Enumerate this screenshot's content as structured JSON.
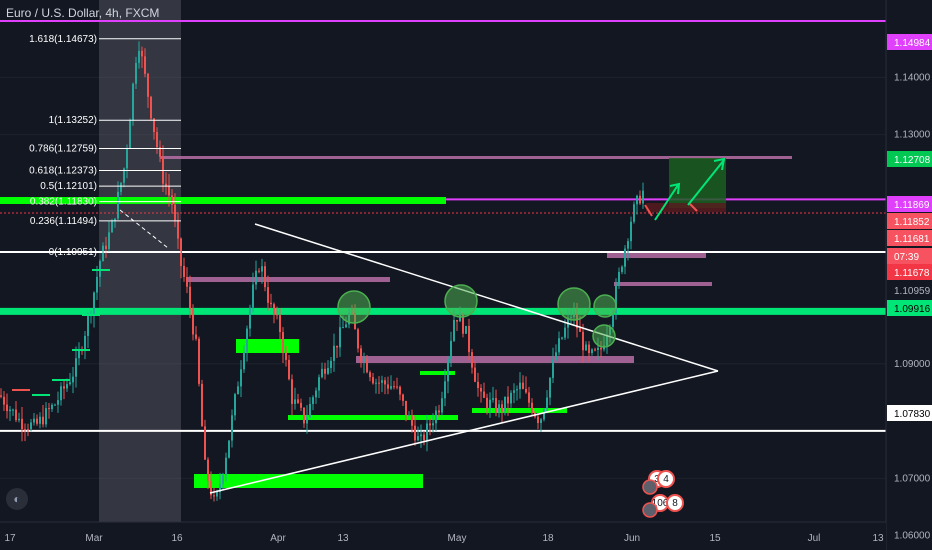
{
  "header": {
    "title": "Euro / U.S. Dollar, 4h, FXCM"
  },
  "chart_data": {
    "type": "candlestick",
    "symbol": "Euro / U.S. Dollar",
    "timeframe": "4h",
    "source": "FXCM",
    "price_axis": {
      "range": [
        1.0575,
        1.1535
      ],
      "ticks": [
        1.14,
        1.13,
        1.09,
        1.07,
        1.06
      ]
    },
    "time_axis": {
      "ticks": [
        "17",
        "Mar",
        "16",
        "Apr",
        "13",
        "May",
        "18",
        "Jun",
        "15",
        "Jul",
        "13"
      ]
    },
    "price_tags": [
      {
        "label": "1.14984",
        "bg": "#e040fb",
        "fg": "#ffffff"
      },
      {
        "label": "1.12708",
        "bg": "#00c853",
        "fg": "#ffffff"
      },
      {
        "label": "1.11869",
        "bg": "#e040fb",
        "fg": "#ffffff"
      },
      {
        "label": "1.11852",
        "bg": "#f7525f",
        "fg": "#ffffff"
      },
      {
        "label": "1.11681",
        "bg": "#f7525f",
        "fg": "#ffffff"
      },
      {
        "label": "07:39",
        "bg": "#f7525f",
        "fg": "#ffffff"
      },
      {
        "label": "1.11678",
        "bg": "#f23645",
        "fg": "#ffffff"
      },
      {
        "label": "1.10959",
        "bg": "#131722",
        "fg": "#b2b5be"
      },
      {
        "label": "1.09916",
        "bg": "#00e676",
        "fg": "#000000"
      },
      {
        "label": "1.07830",
        "bg": "#ffffff",
        "fg": "#000000"
      }
    ],
    "fibonacci": [
      {
        "label": "1.618(1.14673)",
        "price": 1.14673
      },
      {
        "label": "1(1.13252)",
        "price": 1.13252
      },
      {
        "label": "0.786(1.12759)",
        "price": 1.12759
      },
      {
        "label": "0.618(1.12373)",
        "price": 1.12373
      },
      {
        "label": "0.5(1.12101)",
        "price": 1.12101
      },
      {
        "label": "0.382(1.11830)",
        "price": 1.1183
      },
      {
        "label": "0.236(1.11494)",
        "price": 1.11494
      },
      {
        "label": "0(1.10951)",
        "price": 1.10951
      }
    ],
    "horizontal_levels": [
      {
        "price": 1.14984,
        "color": "#e040fb"
      },
      {
        "price": 1.11869,
        "color": "#e040fb"
      },
      {
        "price": 1.10951,
        "color": "#ffffff"
      },
      {
        "price": 1.09916,
        "color": "#00e676"
      },
      {
        "price": 1.0783,
        "color": "#ffffff"
      }
    ],
    "event_badges": [
      "3",
      "4",
      "106",
      "8"
    ]
  },
  "colors": {
    "background": "#131722",
    "up": "#26a69a",
    "down": "#ef5350",
    "fib_zone": "#5d606b",
    "zone_purple": "#b86fa6",
    "zone_green": "#00ff00"
  }
}
